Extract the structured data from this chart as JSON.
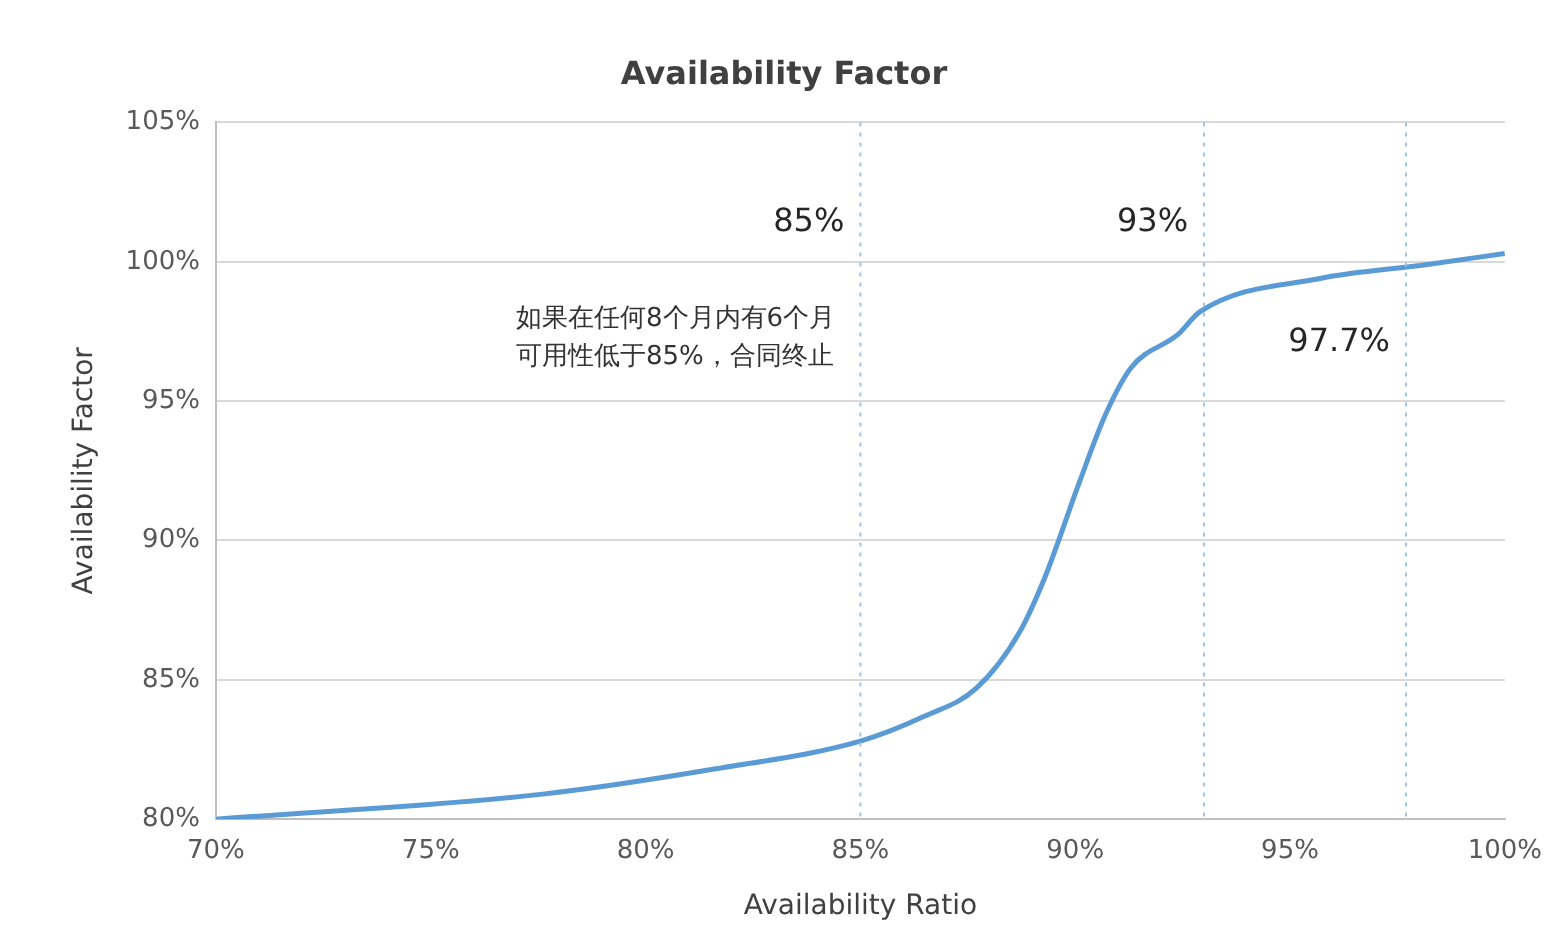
{
  "chart_data": {
    "type": "line",
    "title": "Availability Factor",
    "xlabel": "Availability Ratio",
    "ylabel": "Availability Factor",
    "series": [
      {
        "color": "#5b9bd5",
        "x": [
          70,
          77.6,
          81.6,
          85,
          86.5,
          87.7,
          88.7,
          89.3,
          90.1,
          90.7,
          91.3,
          92.4,
          92.9,
          95.7,
          98.2,
          100
        ],
        "values": [
          80,
          80.9,
          81.8,
          82.8,
          83.7,
          84.7,
          86.7,
          88.7,
          92.1,
          94.5,
          96.2,
          97.4,
          98.2,
          99.4,
          99.9,
          100.3
        ]
      }
    ],
    "xlim": [
      70,
      100
    ],
    "xticks": [
      {
        "value": 70,
        "label": "70%"
      },
      {
        "value": 75,
        "label": "75%"
      },
      {
        "value": 80,
        "label": "80%"
      },
      {
        "value": 85,
        "label": "85%"
      },
      {
        "value": 90,
        "label": "90%"
      },
      {
        "value": 95,
        "label": "95%"
      },
      {
        "value": 100,
        "label": "100%"
      }
    ],
    "ylim": [
      80,
      105
    ],
    "yticks": [
      {
        "value": 80,
        "label": "80%"
      },
      {
        "value": 85,
        "label": "85%"
      },
      {
        "value": 90,
        "label": "90%"
      },
      {
        "value": 95,
        "label": "95%"
      },
      {
        "value": 100,
        "label": "100%"
      },
      {
        "value": 105,
        "label": "105%"
      }
    ],
    "grid": "y",
    "legend": false,
    "marker": "none",
    "line_style": "solid",
    "ref_lines": [
      {
        "axis": "x",
        "value": 85,
        "label": "85%",
        "color": "#9dc3e6",
        "line_style": "dotted"
      },
      {
        "axis": "x",
        "value": 93,
        "label": "93%",
        "color": "#9dc3e6",
        "line_style": "dotted"
      },
      {
        "axis": "x",
        "value": 97.7,
        "label": "97.7%",
        "color": "#9dc3e6",
        "line_style": "dotted"
      }
    ],
    "annotations": [
      "如果在任何8个月内有6个月可用性低于85%，合同终止"
    ]
  }
}
